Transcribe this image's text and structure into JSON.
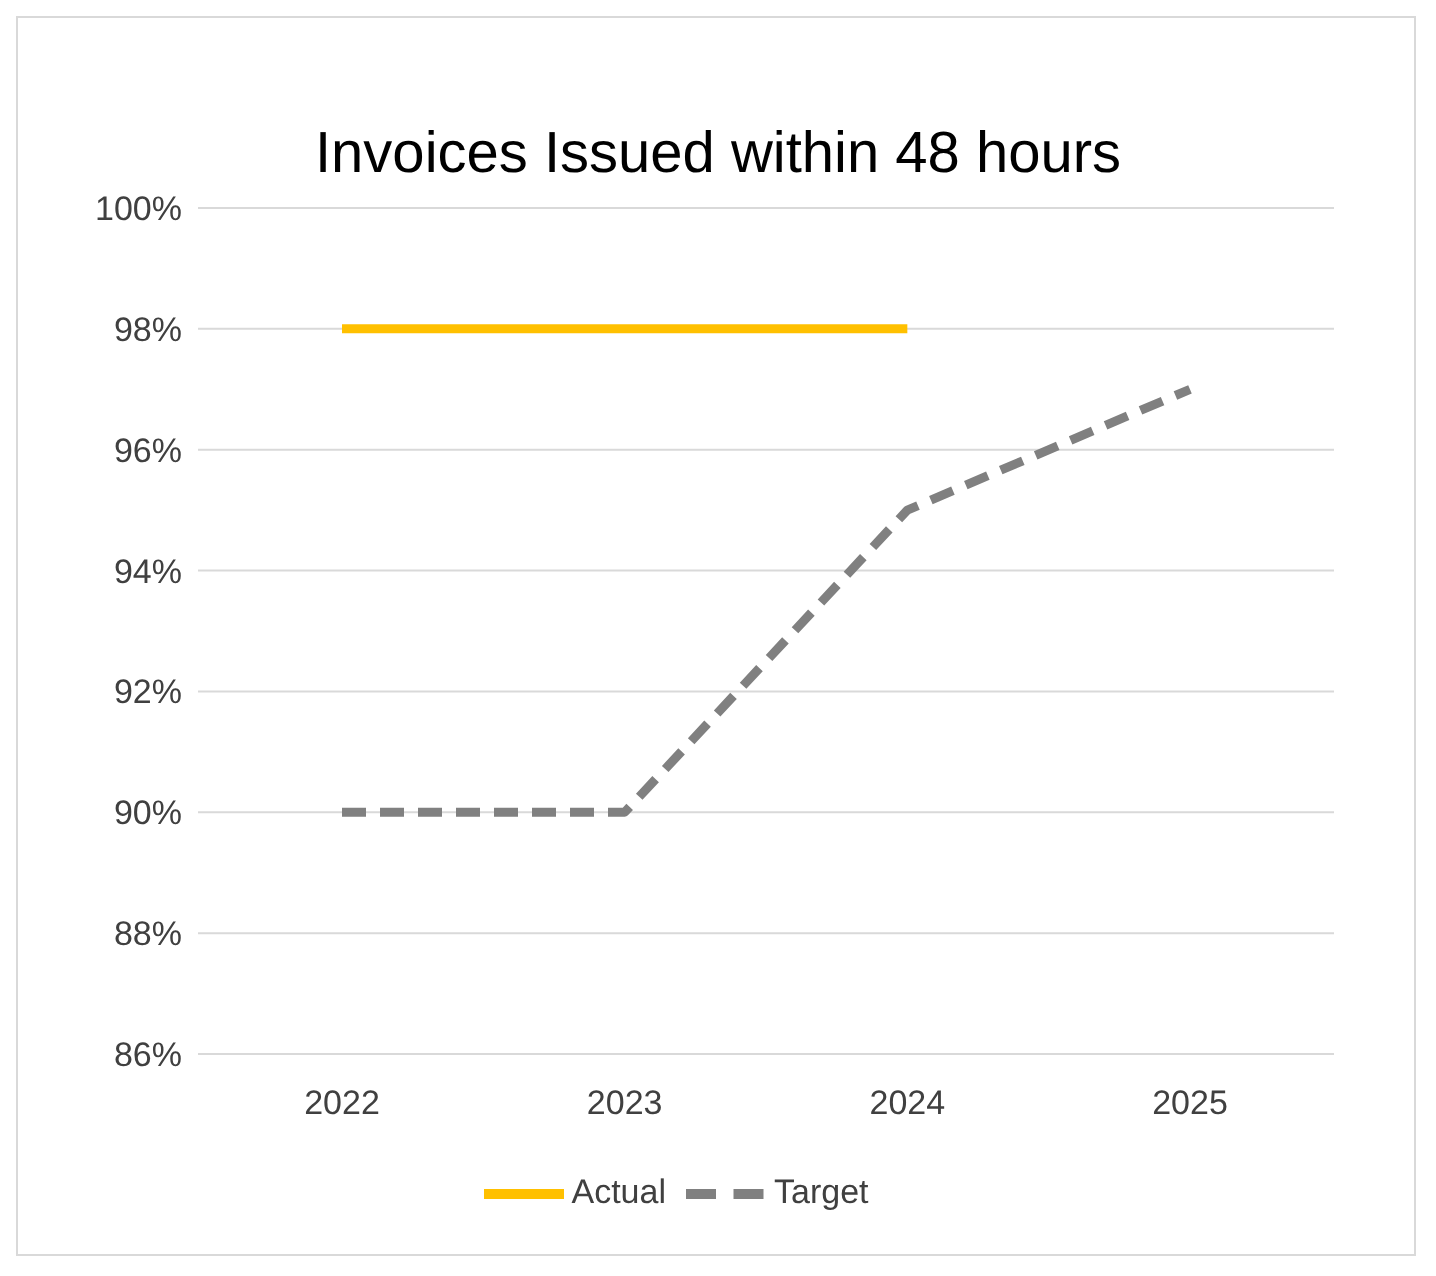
{
  "chart_data": {
    "type": "line",
    "title": "Invoices Issued within 48 hours",
    "categories": [
      "2022",
      "2023",
      "2024",
      "2025"
    ],
    "series": [
      {
        "name": "Actual",
        "color": "#ffc000",
        "values": [
          98,
          98,
          98,
          null
        ],
        "line_style": "solid"
      },
      {
        "name": "Target",
        "color": "#808080",
        "values": [
          90,
          90,
          95,
          97
        ],
        "line_style": "dashed"
      }
    ],
    "ylim": [
      86,
      100
    ],
    "yticks": [
      {
        "value": 86,
        "label": "86%"
      },
      {
        "value": 88,
        "label": "88%"
      },
      {
        "value": 90,
        "label": "90%"
      },
      {
        "value": 92,
        "label": "92%"
      },
      {
        "value": 94,
        "label": "94%"
      },
      {
        "value": 96,
        "label": "96%"
      },
      {
        "value": 98,
        "label": "98%"
      },
      {
        "value": 100,
        "label": "100%"
      }
    ],
    "grid": "y",
    "legend": "bottom",
    "marker": "none"
  }
}
